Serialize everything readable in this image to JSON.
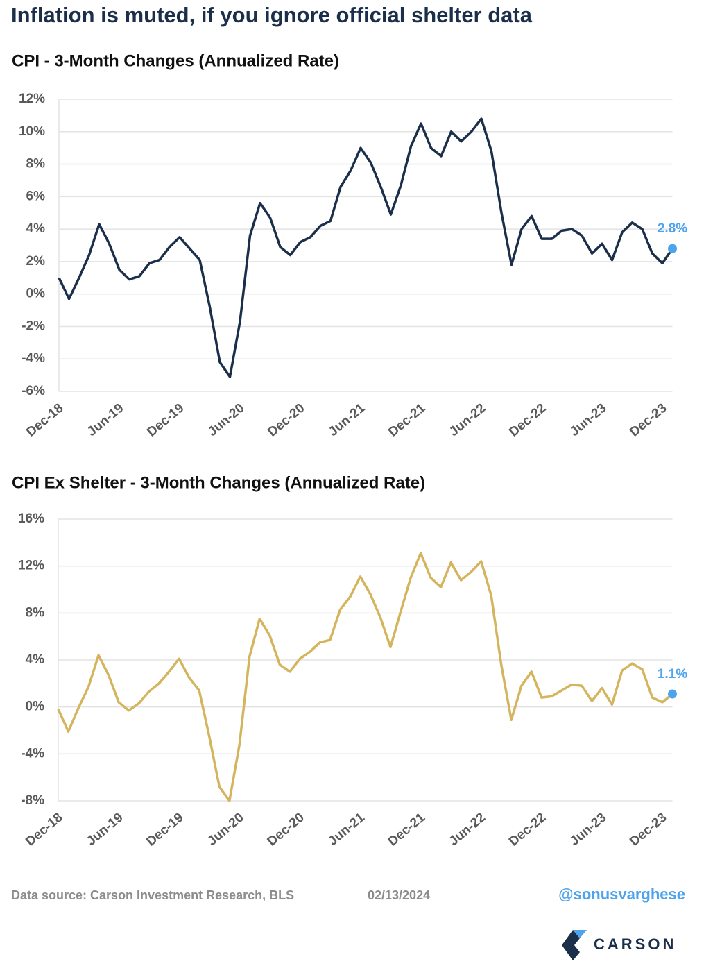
{
  "title": "Inflation is muted, if you ignore official shelter data",
  "chart_data": [
    {
      "type": "line",
      "title": "CPI - 3-Month Changes (Annualized Rate)",
      "categories": [
        "Dec-18",
        null,
        null,
        null,
        null,
        null,
        "Jun-19",
        null,
        null,
        null,
        null,
        null,
        "Dec-19",
        null,
        null,
        null,
        null,
        null,
        "Jun-20",
        null,
        null,
        null,
        null,
        null,
        "Dec-20",
        null,
        null,
        null,
        null,
        null,
        "Jun-21",
        null,
        null,
        null,
        null,
        null,
        "Dec-21",
        null,
        null,
        null,
        null,
        null,
        "Jun-22",
        null,
        null,
        null,
        null,
        null,
        "Dec-22",
        null,
        null,
        null,
        null,
        null,
        "Jun-23",
        null,
        null,
        null,
        null,
        null,
        "Dec-23",
        null
      ],
      "series": [
        {
          "color": "#1b2f4a",
          "values": [
            1.0,
            -0.3,
            1.0,
            2.4,
            4.3,
            3.1,
            1.5,
            0.9,
            1.1,
            1.9,
            2.1,
            2.9,
            3.5,
            2.8,
            2.1,
            -0.8,
            -4.2,
            -5.1,
            -1.7,
            3.6,
            5.6,
            4.7,
            2.9,
            2.4,
            3.2,
            3.5,
            4.2,
            4.5,
            6.6,
            7.6,
            9.0,
            8.1,
            6.6,
            4.9,
            6.7,
            9.1,
            10.5,
            9.0,
            8.5,
            10.0,
            9.4,
            10.0,
            10.8,
            8.8,
            5.0,
            1.8,
            4.0,
            4.8,
            3.4,
            3.4,
            3.9,
            4.0,
            3.6,
            2.5,
            3.1,
            2.1,
            3.8,
            4.4,
            4.0,
            2.5,
            1.9,
            2.8
          ],
          "value_labels": [
            null,
            null,
            null,
            null,
            null,
            null,
            null,
            null,
            null,
            null,
            null,
            null,
            null,
            null,
            null,
            null,
            null,
            null,
            null,
            null,
            null,
            null,
            null,
            null,
            null,
            null,
            null,
            null,
            null,
            null,
            null,
            null,
            null,
            null,
            null,
            null,
            null,
            null,
            null,
            null,
            null,
            null,
            null,
            null,
            null,
            null,
            null,
            null,
            null,
            null,
            null,
            null,
            null,
            null,
            null,
            null,
            null,
            null,
            null,
            null,
            null,
            "2.8%"
          ]
        }
      ],
      "marker_color": "#4da3ec",
      "ylim": [
        -6,
        12
      ],
      "yticks": [
        {
          "value": -6,
          "label": "-6%"
        },
        {
          "value": -4,
          "label": "-4%"
        },
        {
          "value": -2,
          "label": "-2%"
        },
        {
          "value": 0,
          "label": "0%"
        },
        {
          "value": 2,
          "label": "2%"
        },
        {
          "value": 4,
          "label": "4%"
        },
        {
          "value": 6,
          "label": "6%"
        },
        {
          "value": 8,
          "label": "8%"
        },
        {
          "value": 10,
          "label": "10%"
        },
        {
          "value": 12,
          "label": "12%"
        }
      ],
      "grid": true
    },
    {
      "type": "line",
      "title": "CPI Ex Shelter - 3-Month Changes (Annualized Rate)",
      "categories": [
        "Dec-18",
        null,
        null,
        null,
        null,
        null,
        "Jun-19",
        null,
        null,
        null,
        null,
        null,
        "Dec-19",
        null,
        null,
        null,
        null,
        null,
        "Jun-20",
        null,
        null,
        null,
        null,
        null,
        "Dec-20",
        null,
        null,
        null,
        null,
        null,
        "Jun-21",
        null,
        null,
        null,
        null,
        null,
        "Dec-21",
        null,
        null,
        null,
        null,
        null,
        "Jun-22",
        null,
        null,
        null,
        null,
        null,
        "Dec-22",
        null,
        null,
        null,
        null,
        null,
        "Jun-23",
        null,
        null,
        null,
        null,
        null,
        "Dec-23",
        null
      ],
      "series": [
        {
          "color": "#d4b55e",
          "values": [
            -0.2,
            -2.1,
            -0.1,
            1.7,
            4.4,
            2.7,
            0.4,
            -0.3,
            0.3,
            1.3,
            2.0,
            3.0,
            4.1,
            2.5,
            1.4,
            -2.5,
            -6.8,
            -8.0,
            -3.2,
            4.3,
            7.5,
            6.1,
            3.6,
            3.0,
            4.1,
            4.7,
            5.5,
            5.7,
            8.3,
            9.4,
            11.1,
            9.6,
            7.6,
            5.1,
            8.1,
            11.0,
            13.1,
            11.0,
            10.2,
            12.3,
            10.8,
            11.5,
            12.4,
            9.5,
            3.6,
            -1.1,
            1.8,
            3.0,
            0.8,
            0.9,
            1.4,
            1.9,
            1.8,
            0.5,
            1.6,
            0.2,
            3.1,
            3.7,
            3.2,
            0.8,
            0.4,
            1.1
          ],
          "value_labels": [
            null,
            null,
            null,
            null,
            null,
            null,
            null,
            null,
            null,
            null,
            null,
            null,
            null,
            null,
            null,
            null,
            null,
            null,
            null,
            null,
            null,
            null,
            null,
            null,
            null,
            null,
            null,
            null,
            null,
            null,
            null,
            null,
            null,
            null,
            null,
            null,
            null,
            null,
            null,
            null,
            null,
            null,
            null,
            null,
            null,
            null,
            null,
            null,
            null,
            null,
            null,
            null,
            null,
            null,
            null,
            null,
            null,
            null,
            null,
            null,
            null,
            "1.1%"
          ]
        }
      ],
      "marker_color": "#4da3ec",
      "ylim": [
        -8,
        16
      ],
      "yticks": [
        {
          "value": -8,
          "label": "-8%"
        },
        {
          "value": -4,
          "label": "-4%"
        },
        {
          "value": 0,
          "label": "0%"
        },
        {
          "value": 4,
          "label": "4%"
        },
        {
          "value": 8,
          "label": "8%"
        },
        {
          "value": 12,
          "label": "12%"
        },
        {
          "value": 16,
          "label": "16%"
        }
      ],
      "grid": true
    }
  ],
  "footer": {
    "source": "Data source: Carson Investment Research, BLS",
    "date": "02/13/2024",
    "handle": "@sonusvarghese",
    "brand": "CARSON"
  }
}
